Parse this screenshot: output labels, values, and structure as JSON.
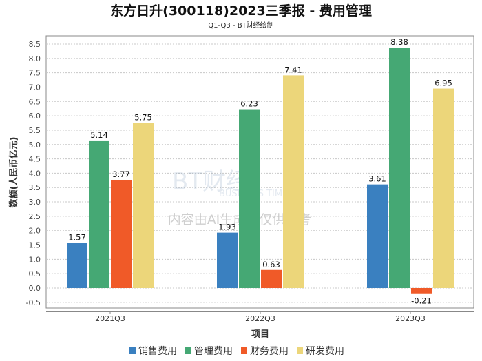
{
  "chart_data": {
    "type": "bar",
    "title": "东方日升(300118)2023三季报 - 费用管理",
    "subtitle": "Q1-Q3 - BT财经绘制",
    "xlabel": "项目",
    "ylabel": "数额(人民币亿元)",
    "ylim": [
      -0.5,
      8.5
    ],
    "yticks": [
      "-0.5",
      "0.0",
      "0.5",
      "1.0",
      "1.5",
      "2.0",
      "2.5",
      "3.0",
      "3.5",
      "4.0",
      "4.5",
      "5.0",
      "5.5",
      "6.0",
      "6.5",
      "7.0",
      "7.5",
      "8.0",
      "8.5"
    ],
    "categories": [
      "2021Q3",
      "2022Q3",
      "2023Q3"
    ],
    "series": [
      {
        "name": "销售费用",
        "color": "#3a80c0",
        "values": [
          1.57,
          1.93,
          3.61
        ]
      },
      {
        "name": "管理费用",
        "color": "#45a874",
        "values": [
          5.14,
          6.23,
          8.38
        ]
      },
      {
        "name": "财务费用",
        "color": "#f05a28",
        "values": [
          3.77,
          0.63,
          -0.21
        ]
      },
      {
        "name": "研发费用",
        "color": "#ecd67a",
        "values": [
          5.75,
          7.41,
          6.95
        ]
      }
    ],
    "grid": true,
    "legend": "bottom"
  },
  "watermark": {
    "brand": "BT财经",
    "brand_en": "BUSINESS TIMES",
    "notice": "内容由AI生成，仅供参考"
  }
}
